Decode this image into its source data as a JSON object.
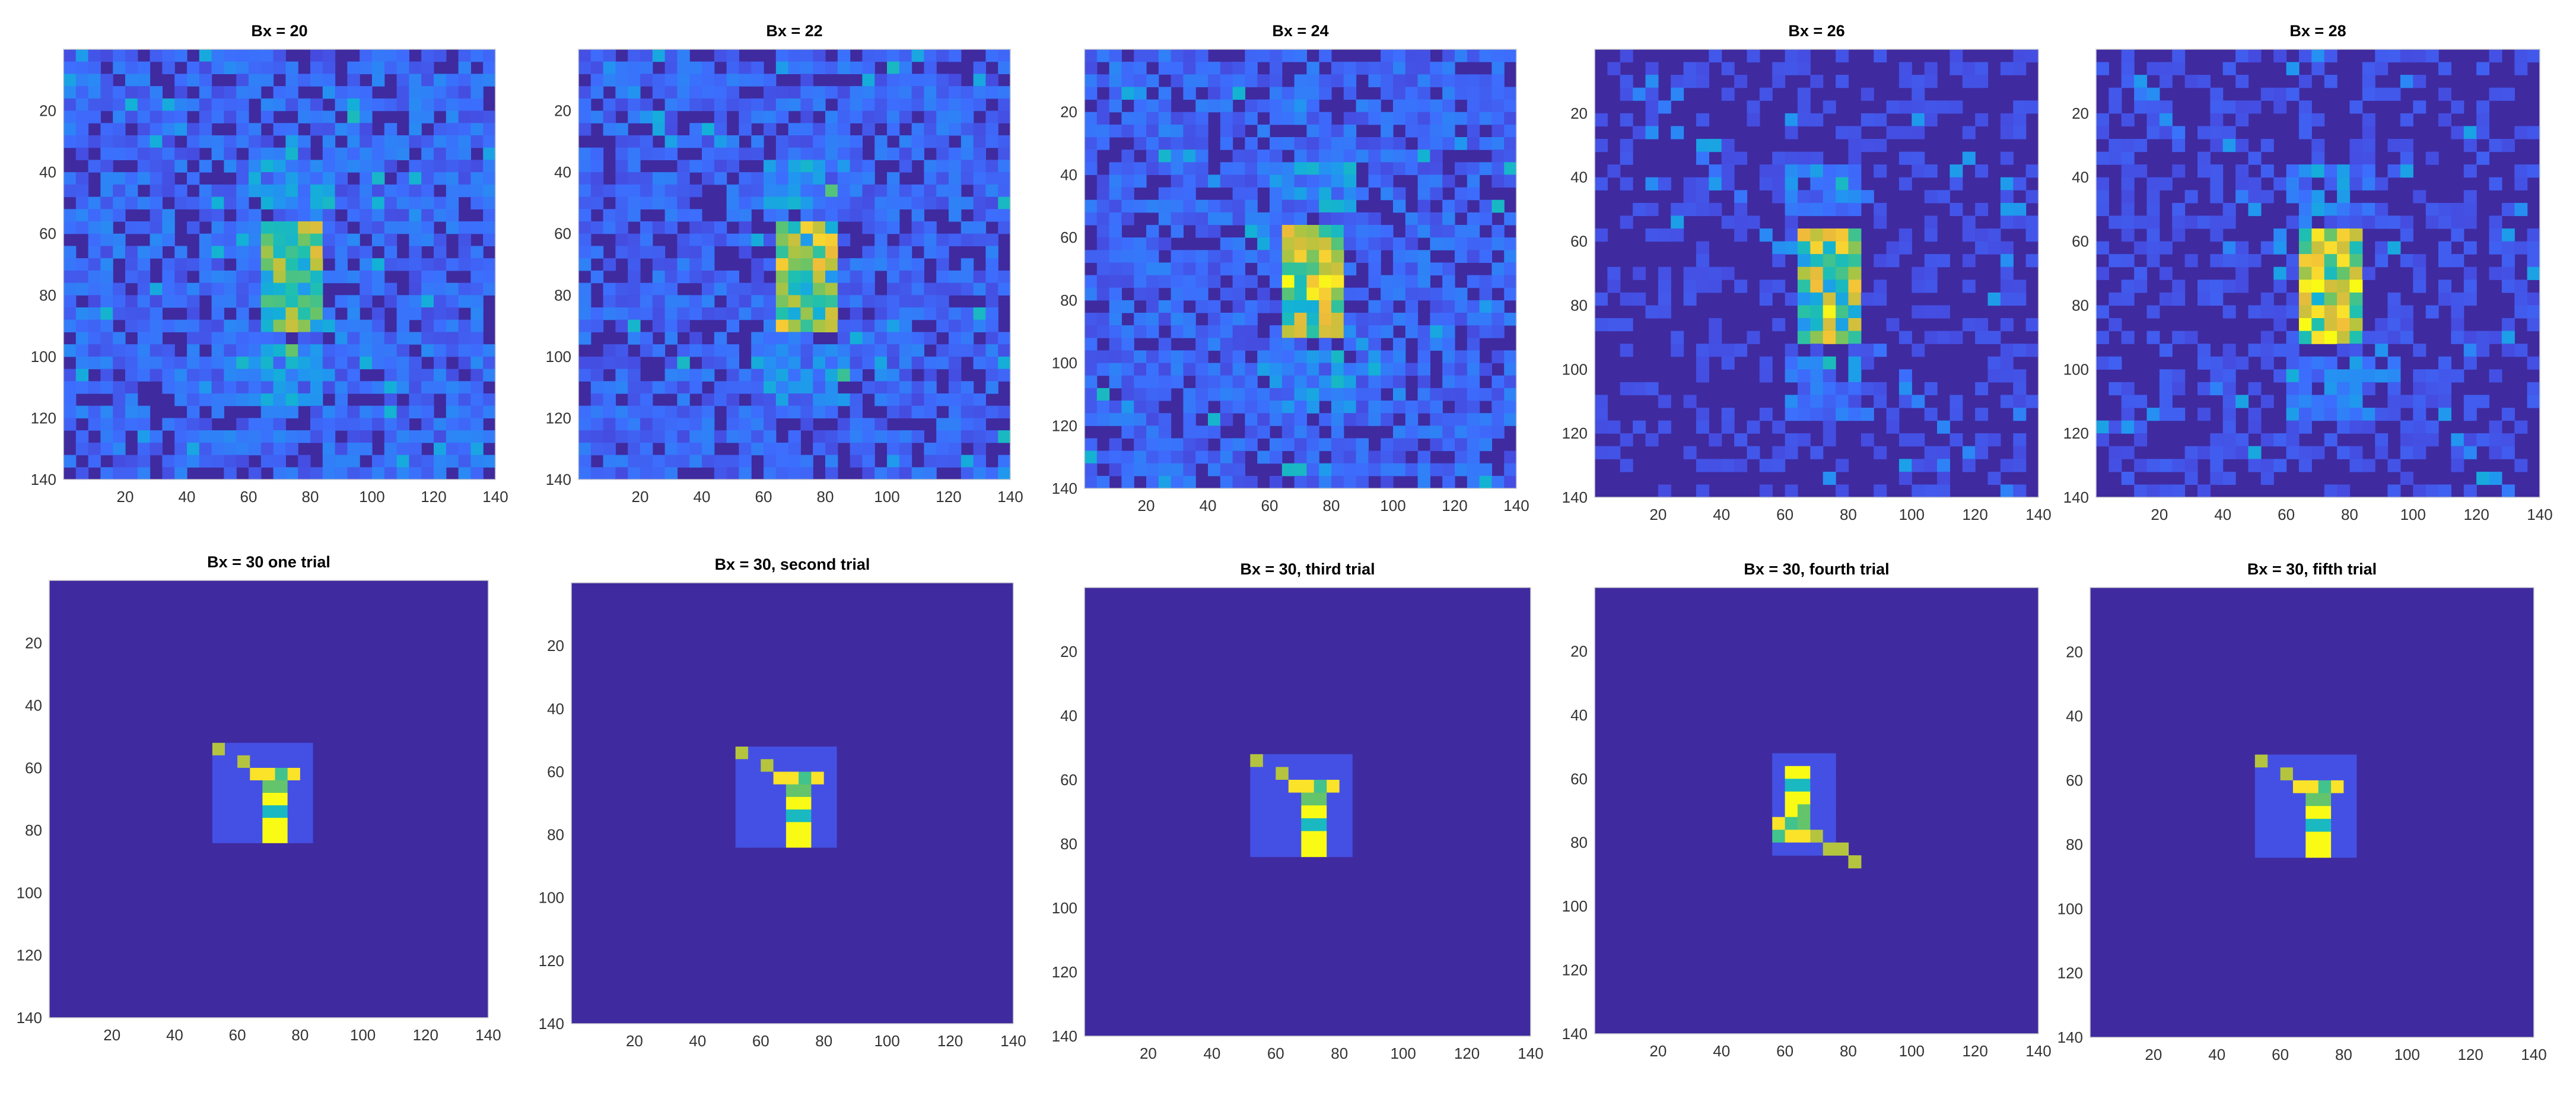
{
  "colors": {
    "background_level": "#3f2a9f",
    "colormap": [
      "#3e26a8",
      "#4743d8",
      "#3d6dfd",
      "#2196f0",
      "#13b1d6",
      "#20c0ae",
      "#64c46b",
      "#b5c43e",
      "#f0bb3a",
      "#fadd2e",
      "#f9fb15"
    ]
  },
  "chart_data": [
    {
      "type": "heatmap",
      "title": "Bx = 20",
      "xlim": [
        1,
        140
      ],
      "ylim": [
        1,
        140
      ],
      "xticks": [
        "20",
        "40",
        "60",
        "80",
        "100",
        "120",
        "140"
      ],
      "yticks": [
        "20",
        "40",
        "60",
        "80",
        "100",
        "120",
        "140"
      ],
      "y_direction": "reverse",
      "pattern": "noisy",
      "noise_level": 0.16,
      "intensity": 0.55
    },
    {
      "type": "heatmap",
      "title": "Bx = 22",
      "xlim": [
        1,
        140
      ],
      "ylim": [
        1,
        140
      ],
      "xticks": [
        "20",
        "40",
        "60",
        "80",
        "100",
        "120",
        "140"
      ],
      "yticks": [
        "20",
        "40",
        "60",
        "80",
        "100",
        "120",
        "140"
      ],
      "y_direction": "reverse",
      "pattern": "noisy",
      "noise_level": 0.15,
      "intensity": 0.65
    },
    {
      "type": "heatmap",
      "title": "Bx = 24",
      "xlim": [
        1,
        140
      ],
      "ylim": [
        1,
        140
      ],
      "xticks": [
        "20",
        "40",
        "60",
        "80",
        "100",
        "120",
        "140"
      ],
      "yticks": [
        "20",
        "40",
        "60",
        "80",
        "100",
        "120",
        "140"
      ],
      "y_direction": "reverse",
      "pattern": "noisy",
      "noise_level": 0.15,
      "intensity": 0.8
    },
    {
      "type": "heatmap",
      "title": "Bx = 26",
      "xlim": [
        1,
        140
      ],
      "ylim": [
        1,
        140
      ],
      "xticks": [
        "20",
        "40",
        "60",
        "80",
        "100",
        "120",
        "140"
      ],
      "yticks": [
        "20",
        "40",
        "60",
        "80",
        "100",
        "120",
        "140"
      ],
      "y_direction": "reverse",
      "pattern": "noisy",
      "noise_level": 0.09,
      "intensity": 0.75
    },
    {
      "type": "heatmap",
      "title": "Bx = 28",
      "xlim": [
        1,
        140
      ],
      "ylim": [
        1,
        140
      ],
      "xticks": [
        "20",
        "40",
        "60",
        "80",
        "100",
        "120",
        "140"
      ],
      "yticks": [
        "20",
        "40",
        "60",
        "80",
        "100",
        "120",
        "140"
      ],
      "y_direction": "reverse",
      "pattern": "noisy",
      "noise_level": 0.1,
      "intensity": 0.95
    },
    {
      "type": "heatmap",
      "title": "Bx = 30 one trial",
      "xlim": [
        1,
        140
      ],
      "ylim": [
        1,
        140
      ],
      "xticks": [
        "20",
        "40",
        "60",
        "80",
        "100",
        "120",
        "140"
      ],
      "yticks": [
        "20",
        "40",
        "60",
        "80",
        "100",
        "120",
        "140"
      ],
      "y_direction": "reverse",
      "pattern": "satellite",
      "orientation": "upright"
    },
    {
      "type": "heatmap",
      "title": "Bx = 30, second trial",
      "xlim": [
        1,
        140
      ],
      "ylim": [
        1,
        140
      ],
      "xticks": [
        "20",
        "40",
        "60",
        "80",
        "100",
        "120",
        "140"
      ],
      "yticks": [
        "20",
        "40",
        "60",
        "80",
        "100",
        "120",
        "140"
      ],
      "y_direction": "reverse",
      "pattern": "satellite",
      "orientation": "upright"
    },
    {
      "type": "heatmap",
      "title": "Bx = 30, third trial",
      "xlim": [
        1,
        140
      ],
      "ylim": [
        1,
        140
      ],
      "xticks": [
        "20",
        "40",
        "60",
        "80",
        "100",
        "120",
        "140"
      ],
      "yticks": [
        "20",
        "40",
        "60",
        "80",
        "100",
        "120",
        "140"
      ],
      "y_direction": "reverse",
      "pattern": "satellite",
      "orientation": "upright"
    },
    {
      "type": "heatmap",
      "title": "Bx = 30, fourth trial",
      "xlim": [
        1,
        140
      ],
      "ylim": [
        1,
        140
      ],
      "xticks": [
        "20",
        "40",
        "60",
        "80",
        "100",
        "120",
        "140"
      ],
      "yticks": [
        "20",
        "40",
        "60",
        "80",
        "100",
        "120",
        "140"
      ],
      "y_direction": "reverse",
      "pattern": "satellite",
      "orientation": "flipped"
    },
    {
      "type": "heatmap",
      "title": "Bx = 30, fifth trial",
      "xlim": [
        1,
        140
      ],
      "ylim": [
        1,
        140
      ],
      "xticks": [
        "20",
        "40",
        "60",
        "80",
        "100",
        "120",
        "140"
      ],
      "yticks": [
        "20",
        "40",
        "60",
        "80",
        "100",
        "120",
        "140"
      ],
      "y_direction": "reverse",
      "pattern": "satellite",
      "orientation": "upright"
    }
  ]
}
